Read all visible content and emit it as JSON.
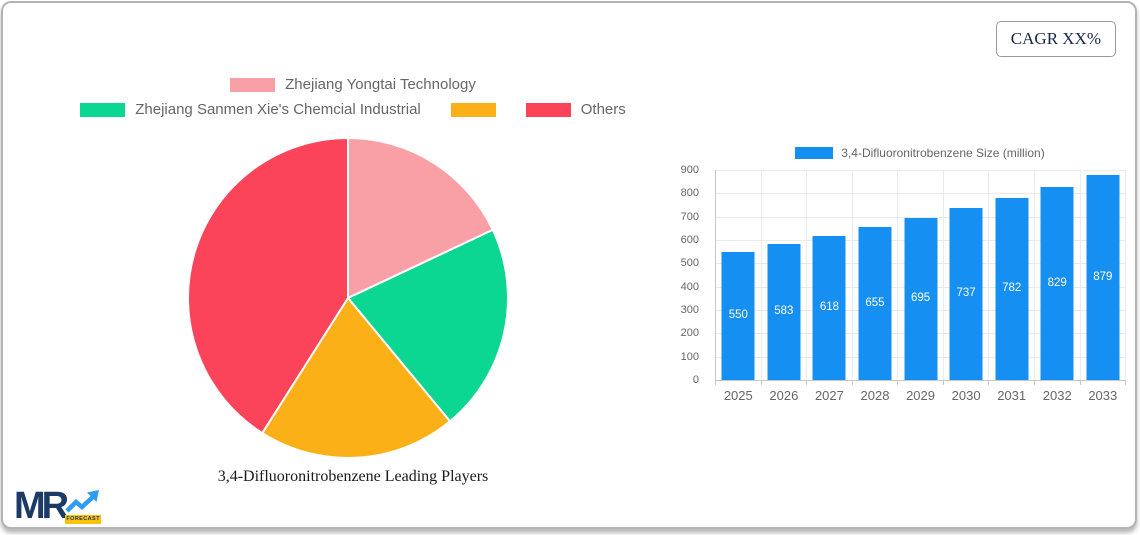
{
  "cagr_badge": "CAGR XX%",
  "logo": {
    "text": "MR",
    "sub": "FORECAST",
    "navy": "#1b3a66",
    "blue": "#2d9cf4",
    "yellow": "#ffc107"
  },
  "chart_data": [
    {
      "type": "pie",
      "title": "3,4-Difluoronitrobenzene Leading Players",
      "legend_position": "top",
      "slices": [
        {
          "label": "Zhejiang Yongtai Technology",
          "percent": 18,
          "color": "#f8a0a6"
        },
        {
          "label": "Zhejiang Sanmen Xie's Chemcial Industrial",
          "percent": 21,
          "color": "#0cd792"
        },
        {
          "label": "",
          "percent": 20,
          "color": "#fcb017"
        },
        {
          "label": "Others",
          "percent": 41,
          "color": "#fb4359"
        }
      ],
      "legend_rows": [
        [
          0
        ],
        [
          1,
          2,
          3
        ]
      ]
    },
    {
      "type": "bar",
      "legend": "3,4-Difluoronitrobenzene Size (million)",
      "categories": [
        "2025",
        "2026",
        "2027",
        "2028",
        "2029",
        "2030",
        "2031",
        "2032",
        "2033"
      ],
      "values": [
        550,
        583,
        618,
        655,
        695,
        737,
        782,
        829,
        879
      ],
      "bar_color": "#1590f2",
      "ylim": [
        0,
        900
      ],
      "ytick_step": 100,
      "grid": true,
      "value_labels": "inside-center"
    }
  ]
}
